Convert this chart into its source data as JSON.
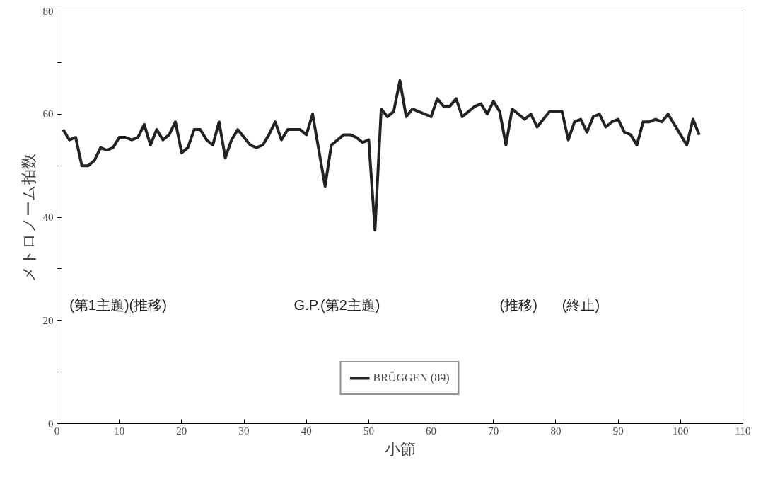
{
  "chart_data": {
    "type": "line",
    "xlabel": "小節",
    "ylabel": "メトロノーム拍数",
    "x": [
      1,
      2,
      3,
      4,
      5,
      6,
      7,
      8,
      9,
      10,
      11,
      12,
      13,
      14,
      15,
      16,
      17,
      18,
      19,
      20,
      21,
      22,
      23,
      24,
      25,
      26,
      27,
      28,
      29,
      30,
      31,
      32,
      33,
      34,
      35,
      36,
      37,
      38,
      39,
      40,
      41,
      42,
      43,
      44,
      45,
      46,
      47,
      48,
      49,
      50,
      51,
      52,
      53,
      54,
      55,
      56,
      57,
      58,
      59,
      60,
      61,
      62,
      63,
      64,
      65,
      66,
      67,
      68,
      69,
      70,
      71,
      72,
      73,
      74,
      75,
      76,
      77,
      78,
      79,
      80,
      81,
      82,
      83,
      84,
      85,
      86,
      87,
      88,
      89,
      90,
      91,
      92,
      93,
      94,
      95,
      96,
      97,
      98,
      99,
      100,
      101,
      102,
      103
    ],
    "series": [
      {
        "name": "BRÜGGEN (89)",
        "color": "#222222",
        "values": [
          57,
          55,
          55.5,
          50,
          50,
          51,
          53.5,
          53,
          53.5,
          55.5,
          55.5,
          55,
          55.5,
          58,
          54,
          57,
          55,
          56,
          58.5,
          52.5,
          53.5,
          57,
          57,
          55,
          54,
          58.5,
          51.5,
          55,
          57,
          55.5,
          54,
          53.5,
          54,
          56,
          58.5,
          55,
          57,
          57,
          57,
          56,
          60,
          53,
          46,
          54,
          55,
          56,
          56,
          55.5,
          54.5,
          55,
          37.5,
          61,
          59.5,
          60.5,
          66.5,
          59.5,
          61,
          60.5,
          60,
          59.5,
          63,
          61.5,
          61.5,
          63,
          59.5,
          60.5,
          61.5,
          62,
          60,
          62.5,
          60.5,
          54,
          61,
          60,
          59,
          60,
          57.5,
          59,
          60.5,
          60.5,
          60.5,
          55,
          58.5,
          59,
          56.5,
          59.5,
          60,
          57.5,
          58.5,
          59,
          56.5,
          56,
          54,
          58.5,
          58.5,
          59,
          58.5,
          60,
          58,
          56,
          54,
          59,
          56
        ]
      }
    ],
    "xlim": [
      0,
      110
    ],
    "xticks": [
      0,
      10,
      20,
      30,
      40,
      50,
      60,
      70,
      80,
      90,
      100,
      110
    ],
    "ylim": [
      0,
      80
    ],
    "yticks": [
      0,
      {
        "value": 10,
        "label": null
      },
      20,
      {
        "value": 30,
        "label": null
      },
      40,
      {
        "value": 50,
        "label": null
      },
      60,
      {
        "value": 70,
        "label": null
      },
      80
    ],
    "annotations": [
      "(第1主題)(推移)",
      "G.P.(第2主題)",
      "(推移)",
      "(終止)"
    ],
    "legend": "bottom",
    "grid": false,
    "marker": "none",
    "line_style": "solid"
  }
}
